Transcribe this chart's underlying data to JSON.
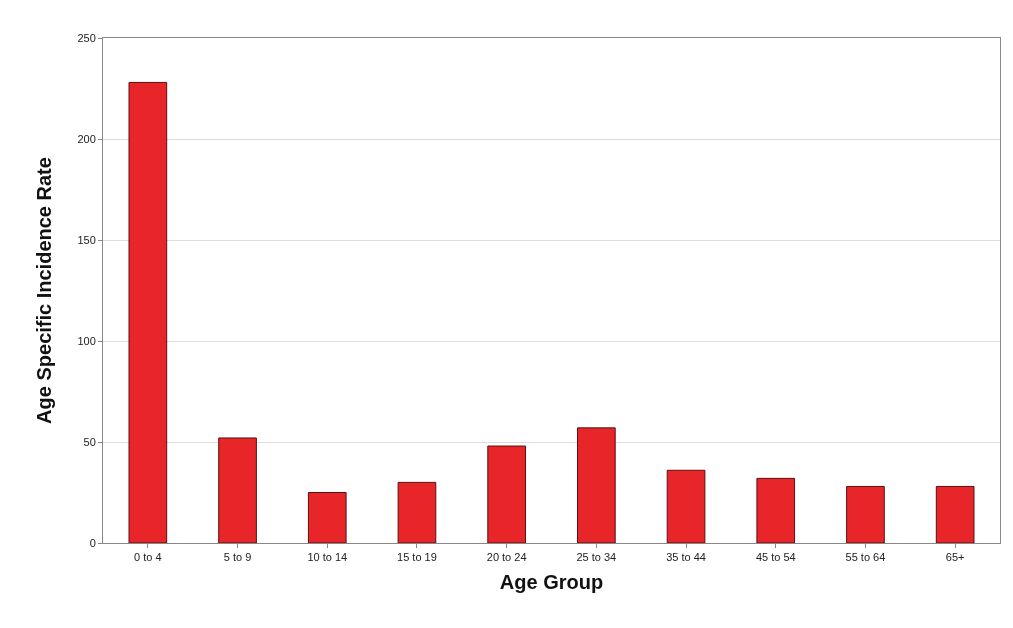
{
  "chart_data": {
    "type": "bar",
    "xlabel": "Age Group",
    "ylabel": "Age Specific Incidence Rate",
    "categories": [
      "0 to 4",
      "5 to 9",
      "10 to 14",
      "15 to 19",
      "20 to 24",
      "25 to 34",
      "35 to 44",
      "45 to 54",
      "55 to 64",
      "65+"
    ],
    "values": [
      228,
      52,
      25,
      30,
      48,
      57,
      36,
      32,
      28,
      28
    ],
    "color": "#e8262a",
    "ylim": [
      0,
      250
    ],
    "yticks": [
      0,
      50,
      100,
      150,
      200,
      250
    ],
    "grid": "y",
    "legend": false
  }
}
